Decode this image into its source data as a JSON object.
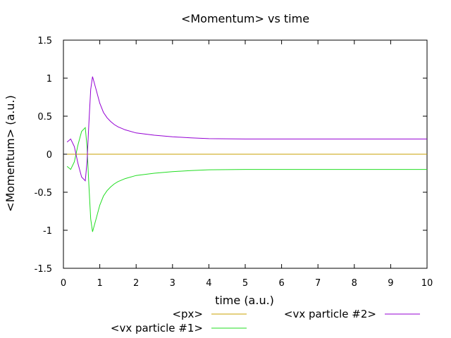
{
  "chart_data": {
    "type": "line",
    "title": "<Momentum> vs time",
    "xlabel": "time (a.u.)",
    "ylabel": "<Momentum> (a.u.)",
    "xlim": [
      0,
      10
    ],
    "ylim": [
      -1.5,
      1.5
    ],
    "xticks": [
      0,
      1,
      2,
      3,
      4,
      5,
      6,
      7,
      8,
      9,
      10
    ],
    "yticks": [
      -1.5,
      -1,
      -0.5,
      0,
      0.5,
      1,
      1.5
    ],
    "xtick_labels": [
      "0",
      "1",
      "2",
      "3",
      "4",
      "5",
      "6",
      "7",
      "8",
      "9",
      "10"
    ],
    "ytick_labels": [
      "-1.5",
      "-1",
      "-0.5",
      "0",
      "0.5",
      "1",
      "1.5"
    ],
    "grid": false,
    "legend_position": "bottom",
    "series": [
      {
        "name": "<px>",
        "color": "#c8a000",
        "x": [
          0.1,
          10
        ],
        "y": [
          0,
          0
        ]
      },
      {
        "name": "<vx particle #1>",
        "color": "#22dd22",
        "x": [
          0.1,
          0.2,
          0.3,
          0.4,
          0.5,
          0.6,
          0.65,
          0.7,
          0.75,
          0.8,
          0.9,
          1.0,
          1.1,
          1.2,
          1.3,
          1.4,
          1.5,
          1.7,
          2.0,
          2.5,
          3.0,
          3.5,
          4.0,
          5.0,
          6.0,
          7.0,
          8.0,
          9.0,
          10.0
        ],
        "y": [
          -0.16,
          -0.2,
          -0.1,
          0.12,
          0.3,
          0.35,
          0.1,
          -0.4,
          -0.85,
          -1.02,
          -0.85,
          -0.67,
          -0.55,
          -0.48,
          -0.43,
          -0.39,
          -0.36,
          -0.32,
          -0.28,
          -0.25,
          -0.23,
          -0.215,
          -0.205,
          -0.2,
          -0.2,
          -0.2,
          -0.2,
          -0.2,
          -0.2
        ]
      },
      {
        "name": "<vx particle #2>",
        "color": "#9400d3",
        "x": [
          0.1,
          0.2,
          0.3,
          0.4,
          0.5,
          0.6,
          0.65,
          0.7,
          0.75,
          0.8,
          0.9,
          1.0,
          1.1,
          1.2,
          1.3,
          1.4,
          1.5,
          1.7,
          2.0,
          2.5,
          3.0,
          3.5,
          4.0,
          5.0,
          6.0,
          7.0,
          8.0,
          9.0,
          10.0
        ],
        "y": [
          0.16,
          0.2,
          0.1,
          -0.12,
          -0.3,
          -0.35,
          -0.1,
          0.4,
          0.85,
          1.02,
          0.85,
          0.67,
          0.55,
          0.48,
          0.43,
          0.39,
          0.36,
          0.32,
          0.28,
          0.25,
          0.23,
          0.215,
          0.205,
          0.2,
          0.2,
          0.2,
          0.2,
          0.2,
          0.2
        ]
      }
    ]
  }
}
